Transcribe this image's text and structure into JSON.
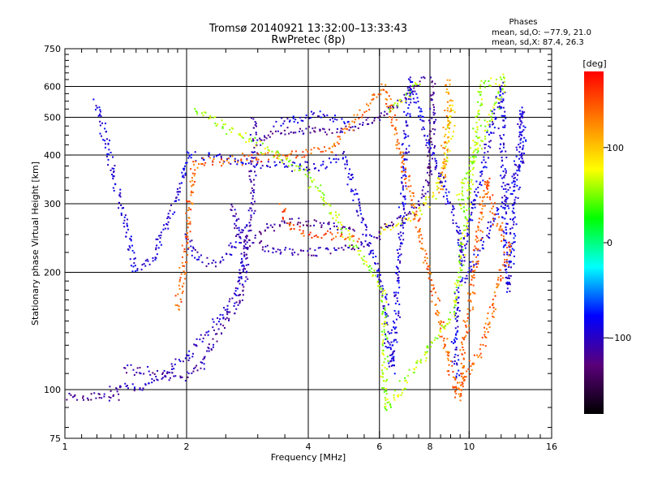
{
  "chart_data": {
    "type": "scatter",
    "title": "Tromsø 20140921 13:32:00–13:33:43",
    "subtitle": "RwPretec (8p)",
    "phases": {
      "heading": "Phases",
      "line_o": "mean, sd,O: −77.9, 21.0",
      "line_x": "mean, sd,X:  87.4, 26.3"
    },
    "xlabel": "Frequency [MHz]",
    "ylabel": "Stationary phase Virtual Height [km]",
    "x_scale": "log",
    "y_scale": "log",
    "xlim": [
      1,
      16
    ],
    "ylim": [
      75,
      750
    ],
    "x_ticks": [
      {
        "v": 1,
        "label": "1"
      },
      {
        "v": 2,
        "label": "2"
      },
      {
        "v": 4,
        "label": "4"
      },
      {
        "v": 6,
        "label": "6"
      },
      {
        "v": 8,
        "label": "8"
      },
      {
        "v": 10,
        "label": "10"
      },
      {
        "v": 16,
        "label": "16"
      }
    ],
    "y_ticks": [
      {
        "v": 75,
        "label": "75"
      },
      {
        "v": 100,
        "label": "100"
      },
      {
        "v": 200,
        "label": "200"
      },
      {
        "v": 300,
        "label": "300"
      },
      {
        "v": 400,
        "label": "400"
      },
      {
        "v": 500,
        "label": "500"
      },
      {
        "v": 600,
        "label": "600"
      },
      {
        "v": 750,
        "label": "750"
      }
    ],
    "x_grid": [
      2,
      4,
      6,
      8,
      10
    ],
    "y_grid": [
      100,
      200,
      300,
      400,
      500,
      600
    ],
    "grid": true,
    "colorbar": {
      "label": "[deg]",
      "range": [
        -180,
        180
      ],
      "ticks": [
        {
          "v": 100,
          "label": "100"
        },
        {
          "v": 0,
          "label": "0"
        },
        {
          "v": -100,
          "label": "−100"
        }
      ],
      "colors": [
        "#000000",
        "#5a007a",
        "#0000ff",
        "#00ffff",
        "#00ff00",
        "#ffff00",
        "#ff7f00",
        "#ff0000"
      ]
    },
    "traces": [
      {
        "phase": -120,
        "jitter": 0.04,
        "points": [
          [
            1.0,
            96
          ],
          [
            1.1,
            95
          ],
          [
            1.2,
            96
          ],
          [
            1.3,
            96
          ],
          [
            1.35,
            97
          ]
        ]
      },
      {
        "phase": -110,
        "jitter": 0.05,
        "points": [
          [
            1.4,
            113
          ],
          [
            1.5,
            112
          ],
          [
            1.6,
            111
          ],
          [
            1.7,
            110
          ],
          [
            1.8,
            108
          ],
          [
            1.9,
            107
          ],
          [
            2.0,
            108
          ],
          [
            2.1,
            112
          ],
          [
            2.2,
            118
          ],
          [
            2.3,
            128
          ],
          [
            2.4,
            140
          ],
          [
            2.5,
            150
          ],
          [
            2.6,
            158
          ],
          [
            2.7,
            168
          ],
          [
            2.75,
            180
          ],
          [
            2.8,
            200
          ],
          [
            2.82,
            230
          ],
          [
            2.85,
            260
          ],
          [
            2.9,
            290
          ],
          [
            2.9,
            330
          ],
          [
            2.92,
            380
          ],
          [
            2.95,
            440
          ],
          [
            2.95,
            500
          ]
        ]
      },
      {
        "phase": -100,
        "jitter": 0.05,
        "points": [
          [
            1.3,
            100
          ],
          [
            1.45,
            101
          ],
          [
            1.6,
            103
          ],
          [
            1.75,
            109
          ],
          [
            1.9,
            117
          ],
          [
            2.05,
            125
          ],
          [
            2.2,
            135
          ],
          [
            2.35,
            147
          ],
          [
            2.5,
            160
          ],
          [
            2.6,
            172
          ],
          [
            2.7,
            190
          ],
          [
            2.75,
            210
          ],
          [
            2.8,
            235
          ]
        ]
      },
      {
        "phase": -100,
        "jitter": 0.05,
        "points": [
          [
            2.0,
            250
          ],
          [
            2.05,
            235
          ],
          [
            2.1,
            222
          ],
          [
            2.2,
            214
          ],
          [
            2.3,
            212
          ],
          [
            2.4,
            215
          ],
          [
            2.5,
            222
          ],
          [
            2.6,
            232
          ],
          [
            2.7,
            248
          ],
          [
            2.8,
            265
          ]
        ]
      },
      {
        "phase": -110,
        "jitter": 0.05,
        "points": [
          [
            2.6,
            300
          ],
          [
            2.65,
            270
          ],
          [
            2.7,
            250
          ],
          [
            2.8,
            245
          ],
          [
            2.9,
            242
          ],
          [
            3.0,
            240
          ],
          [
            3.1,
            232
          ],
          [
            3.3,
            228
          ],
          [
            3.5,
            226
          ],
          [
            3.8,
            225
          ],
          [
            4.1,
            226
          ],
          [
            4.5,
            226
          ],
          [
            4.9,
            228
          ],
          [
            5.3,
            232
          ],
          [
            5.7,
            240
          ],
          [
            6.0,
            248
          ]
        ]
      },
      {
        "phase": -120,
        "jitter": 0.04,
        "points": [
          [
            3.0,
            250
          ],
          [
            3.2,
            262
          ],
          [
            3.4,
            265
          ],
          [
            3.6,
            268
          ],
          [
            3.8,
            268
          ],
          [
            4.0,
            270
          ],
          [
            4.3,
            268
          ],
          [
            4.6,
            262
          ],
          [
            4.9,
            260
          ],
          [
            5.2,
            258
          ]
        ]
      },
      {
        "phase": 150,
        "jitter": 0.05,
        "points": [
          [
            3.45,
            295
          ],
          [
            3.5,
            280
          ],
          [
            3.6,
            265
          ],
          [
            3.7,
            258
          ],
          [
            3.9,
            255
          ],
          [
            4.1,
            252
          ],
          [
            4.4,
            250
          ],
          [
            4.7,
            248
          ],
          [
            5.0,
            246
          ],
          [
            5.3,
            245
          ]
        ]
      },
      {
        "phase": 80,
        "jitter": 0.05,
        "points": [
          [
            6.0,
            252
          ],
          [
            6.5,
            262
          ],
          [
            7.0,
            272
          ],
          [
            7.4,
            282
          ],
          [
            7.8,
            295
          ],
          [
            8.1,
            310
          ],
          [
            8.4,
            330
          ],
          [
            8.6,
            360
          ],
          [
            8.8,
            400
          ],
          [
            8.95,
            440
          ],
          [
            9.05,
            490
          ],
          [
            9.1,
            540
          ]
        ]
      },
      {
        "phase": -120,
        "jitter": 0.05,
        "points": [
          [
            6.0,
            255
          ],
          [
            6.5,
            268
          ],
          [
            7.0,
            280
          ],
          [
            7.4,
            295
          ],
          [
            7.7,
            315
          ],
          [
            7.9,
            340
          ],
          [
            8.0,
            380
          ],
          [
            8.05,
            420
          ],
          [
            8.1,
            470
          ],
          [
            8.15,
            520
          ],
          [
            8.1,
            570
          ],
          [
            8.05,
            620
          ]
        ]
      },
      {
        "phase": -115,
        "jitter": 0.04,
        "points": [
          [
            3.0,
            430
          ],
          [
            3.2,
            450
          ],
          [
            3.5,
            460
          ],
          [
            4.0,
            462
          ],
          [
            4.5,
            460
          ],
          [
            5.0,
            465
          ],
          [
            5.5,
            480
          ],
          [
            6.0,
            500
          ],
          [
            6.5,
            530
          ],
          [
            7.0,
            565
          ],
          [
            7.4,
            600
          ],
          [
            7.7,
            630
          ]
        ]
      },
      {
        "phase": -90,
        "jitter": 0.05,
        "points": [
          [
            3.3,
            480
          ],
          [
            3.7,
            490
          ],
          [
            4.0,
            500
          ],
          [
            4.3,
            505
          ],
          [
            4.6,
            500
          ],
          [
            5.0,
            490
          ]
        ]
      },
      {
        "phase": 60,
        "jitter": 0.04,
        "points": [
          [
            6.3,
            520
          ],
          [
            6.6,
            540
          ],
          [
            6.9,
            560
          ],
          [
            7.2,
            585
          ],
          [
            7.5,
            610
          ]
        ]
      },
      {
        "phase": 120,
        "jitter": 0.05,
        "points": [
          [
            8.5,
            320
          ],
          [
            8.65,
            380
          ],
          [
            8.75,
            440
          ],
          [
            8.85,
            500
          ],
          [
            8.9,
            560
          ],
          [
            8.9,
            620
          ]
        ]
      },
      {
        "phase": -90,
        "jitter": 0.05,
        "points": [
          [
            1.2,
            550
          ],
          [
            1.5,
            202
          ],
          [
            1.65,
            214
          ],
          [
            2.05,
            400
          ],
          [
            2.2,
            395
          ],
          [
            4.2,
            370
          ],
          [
            4.9,
            400
          ],
          [
            6.2,
            170
          ],
          [
            6.3,
            130
          ],
          [
            6.5,
            112
          ],
          [
            7.1,
            620
          ],
          [
            9.3,
            270
          ],
          [
            9.45,
            250
          ],
          [
            9.5,
            210
          ],
          [
            12.0,
            600
          ],
          [
            12.5,
            180
          ],
          [
            13.5,
            530
          ],
          [
            13.6,
            385
          ],
          [
            9.4,
            180
          ],
          [
            9.3,
            145
          ],
          [
            9.25,
            125
          ],
          [
            9.35,
            108
          ]
        ]
      },
      {
        "phase": 140,
        "jitter": 0.05,
        "points": [
          [
            1.9,
            160
          ],
          [
            2.1,
            380
          ],
          [
            4.5,
            410
          ],
          [
            6.2,
            600
          ],
          [
            9.4,
            95
          ],
          [
            11.0,
            350
          ],
          [
            11.5,
            280
          ],
          [
            12.3,
            240
          ],
          [
            12.5,
            230
          ],
          [
            10.8,
            130
          ],
          [
            9.3,
            98
          ]
        ]
      },
      {
        "phase": 60,
        "jitter": 0.05,
        "points": [
          [
            2.1,
            520
          ],
          [
            3.9,
            365
          ],
          [
            6.15,
            180
          ],
          [
            6.2,
            88
          ],
          [
            9.2,
            160
          ],
          [
            10.8,
            620
          ],
          [
            11.0,
            615
          ],
          [
            12.3,
            625
          ],
          [
            9.5,
            320
          ],
          [
            9.6,
            290
          ]
        ]
      }
    ]
  }
}
